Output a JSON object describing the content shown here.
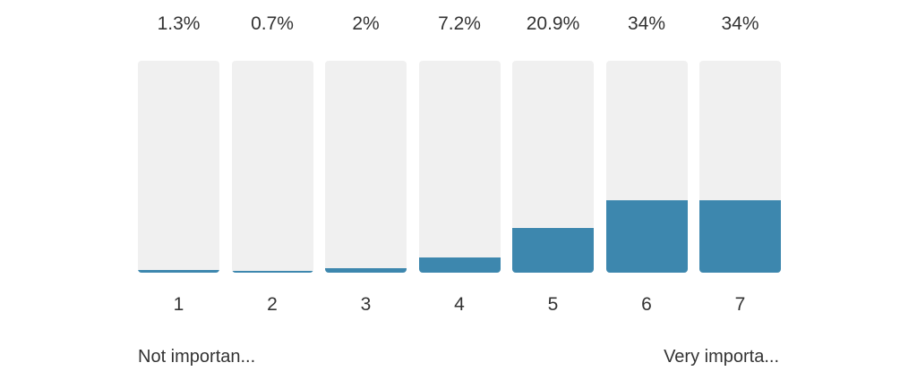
{
  "chart_data": {
    "type": "bar",
    "categories": [
      "1",
      "2",
      "3",
      "4",
      "5",
      "6",
      "7"
    ],
    "values": [
      1.3,
      0.7,
      2,
      7.2,
      20.9,
      34,
      34
    ],
    "value_labels": [
      "1.3%",
      "0.7%",
      "2%",
      "7.2%",
      "20.9%",
      "34%",
      "34%"
    ],
    "ylim": [
      0,
      100
    ],
    "unit": "%",
    "grid": false,
    "colors": {
      "fill": "#3d87ae",
      "track": "#f0f0f0"
    }
  },
  "scale_labels": {
    "low": "Not importan...",
    "high": "Very importa..."
  }
}
